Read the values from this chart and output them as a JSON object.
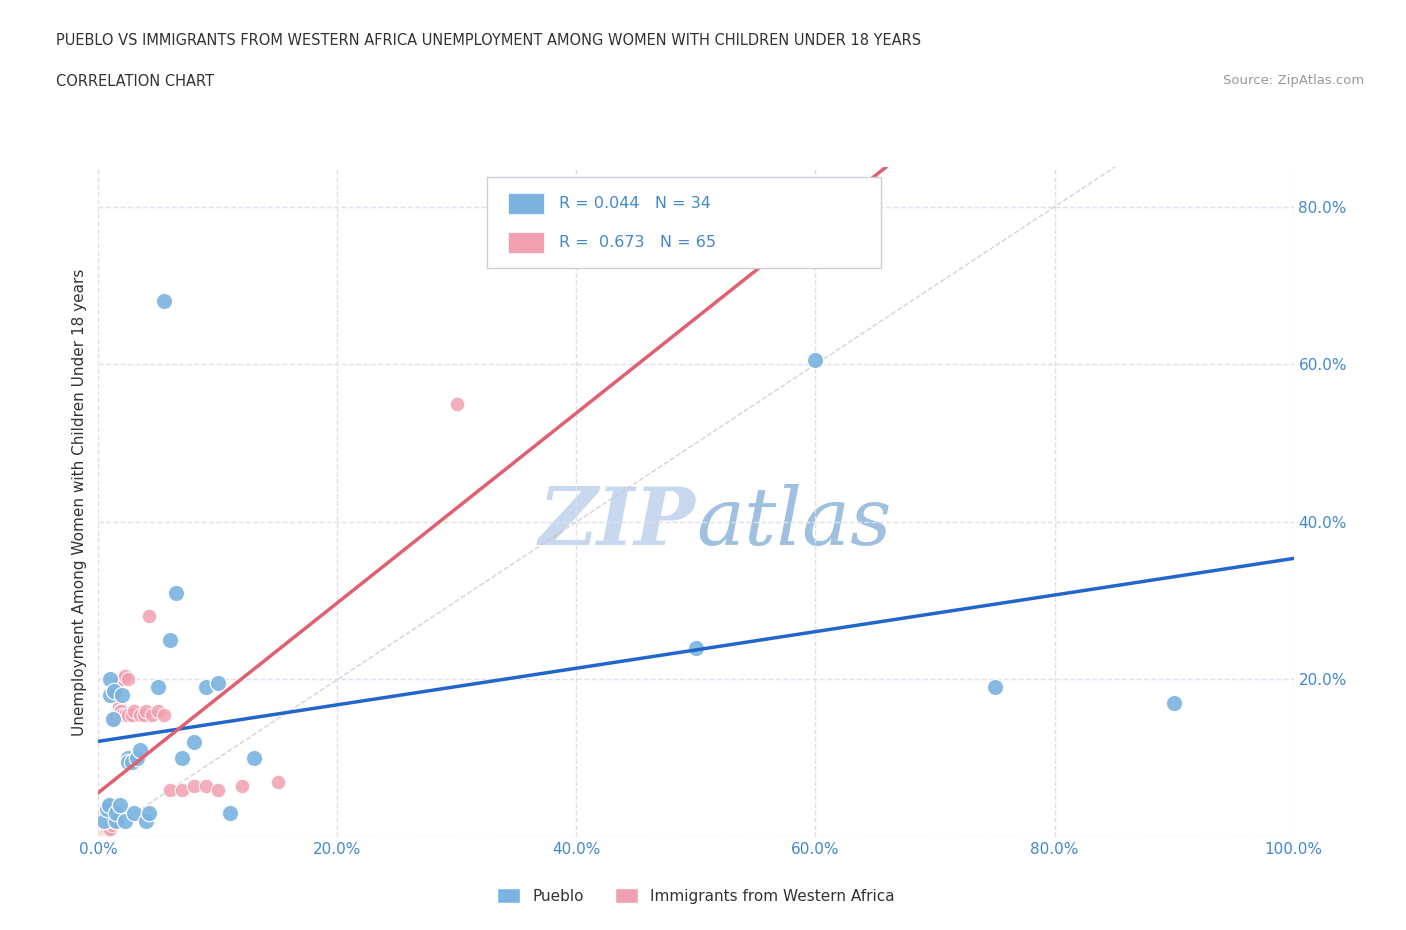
{
  "title_line1": "PUEBLO VS IMMIGRANTS FROM WESTERN AFRICA UNEMPLOYMENT AMONG WOMEN WITH CHILDREN UNDER 18 YEARS",
  "title_line2": "CORRELATION CHART",
  "source_text": "Source: ZipAtlas.com",
  "ylabel": "Unemployment Among Women with Children Under 18 years",
  "xlim": [
    0,
    1.0
  ],
  "ylim": [
    0,
    0.85
  ],
  "xticks": [
    0.0,
    0.2,
    0.4,
    0.6,
    0.8,
    1.0
  ],
  "yticks": [
    0.0,
    0.2,
    0.4,
    0.6,
    0.8
  ],
  "xtick_labels": [
    "0.0%",
    "20.0%",
    "40.0%",
    "60.0%",
    "80.0%",
    "100.0%"
  ],
  "ytick_labels_right": [
    "",
    "20.0%",
    "40.0%",
    "60.0%",
    "80.0%"
  ],
  "grid_color": "#dde0ee",
  "background_color": "#ffffff",
  "pueblo_color": "#7ab3e0",
  "immigrant_color": "#f0a0b0",
  "pueblo_line_color": "#2266cc",
  "immigrant_line_color": "#e06070",
  "diag_color": "#ccccdd",
  "pueblo_r": 0.044,
  "pueblo_n": 34,
  "immigrant_r": 0.673,
  "immigrant_n": 65,
  "stat_text_color": "#4488cc",
  "label_color": "#333333",
  "source_color": "#999999",
  "legend_label_pueblo": "Pueblo",
  "legend_label_immigrant": "Immigrants from Western Africa",
  "pueblo_x": [
    0.005,
    0.007,
    0.009,
    0.01,
    0.01,
    0.012,
    0.013,
    0.015,
    0.015,
    0.018,
    0.02,
    0.022,
    0.025,
    0.025,
    0.028,
    0.03,
    0.032,
    0.035,
    0.04,
    0.042,
    0.05,
    0.055,
    0.06,
    0.065,
    0.07,
    0.08,
    0.09,
    0.1,
    0.11,
    0.13,
    0.5,
    0.6,
    0.75,
    0.9
  ],
  "pueblo_y": [
    0.02,
    0.035,
    0.04,
    0.18,
    0.2,
    0.15,
    0.185,
    0.02,
    0.03,
    0.04,
    0.18,
    0.02,
    0.1,
    0.095,
    0.095,
    0.03,
    0.1,
    0.11,
    0.02,
    0.03,
    0.19,
    0.68,
    0.25,
    0.31,
    0.1,
    0.12,
    0.19,
    0.195,
    0.03,
    0.1,
    0.24,
    0.605,
    0.19,
    0.17
  ],
  "immigrant_x": [
    0.002,
    0.002,
    0.003,
    0.003,
    0.004,
    0.004,
    0.005,
    0.005,
    0.005,
    0.005,
    0.005,
    0.006,
    0.006,
    0.006,
    0.007,
    0.007,
    0.007,
    0.008,
    0.008,
    0.008,
    0.009,
    0.009,
    0.01,
    0.01,
    0.01,
    0.01,
    0.011,
    0.011,
    0.012,
    0.012,
    0.013,
    0.013,
    0.014,
    0.014,
    0.015,
    0.015,
    0.016,
    0.016,
    0.017,
    0.018,
    0.018,
    0.019,
    0.02,
    0.02,
    0.022,
    0.022,
    0.025,
    0.025,
    0.028,
    0.03,
    0.035,
    0.038,
    0.04,
    0.042,
    0.045,
    0.05,
    0.055,
    0.06,
    0.07,
    0.08,
    0.09,
    0.1,
    0.12,
    0.15,
    0.3
  ],
  "immigrant_y": [
    0.01,
    0.02,
    0.01,
    0.025,
    0.015,
    0.03,
    0.01,
    0.015,
    0.02,
    0.025,
    0.03,
    0.01,
    0.02,
    0.03,
    0.01,
    0.02,
    0.03,
    0.015,
    0.025,
    0.035,
    0.01,
    0.025,
    0.01,
    0.02,
    0.03,
    0.04,
    0.015,
    0.025,
    0.02,
    0.15,
    0.02,
    0.15,
    0.02,
    0.155,
    0.02,
    0.155,
    0.16,
    0.195,
    0.165,
    0.16,
    0.2,
    0.16,
    0.155,
    0.2,
    0.155,
    0.205,
    0.155,
    0.2,
    0.155,
    0.16,
    0.155,
    0.155,
    0.16,
    0.28,
    0.155,
    0.16,
    0.155,
    0.06,
    0.06,
    0.065,
    0.065,
    0.06,
    0.065,
    0.07,
    0.55
  ]
}
